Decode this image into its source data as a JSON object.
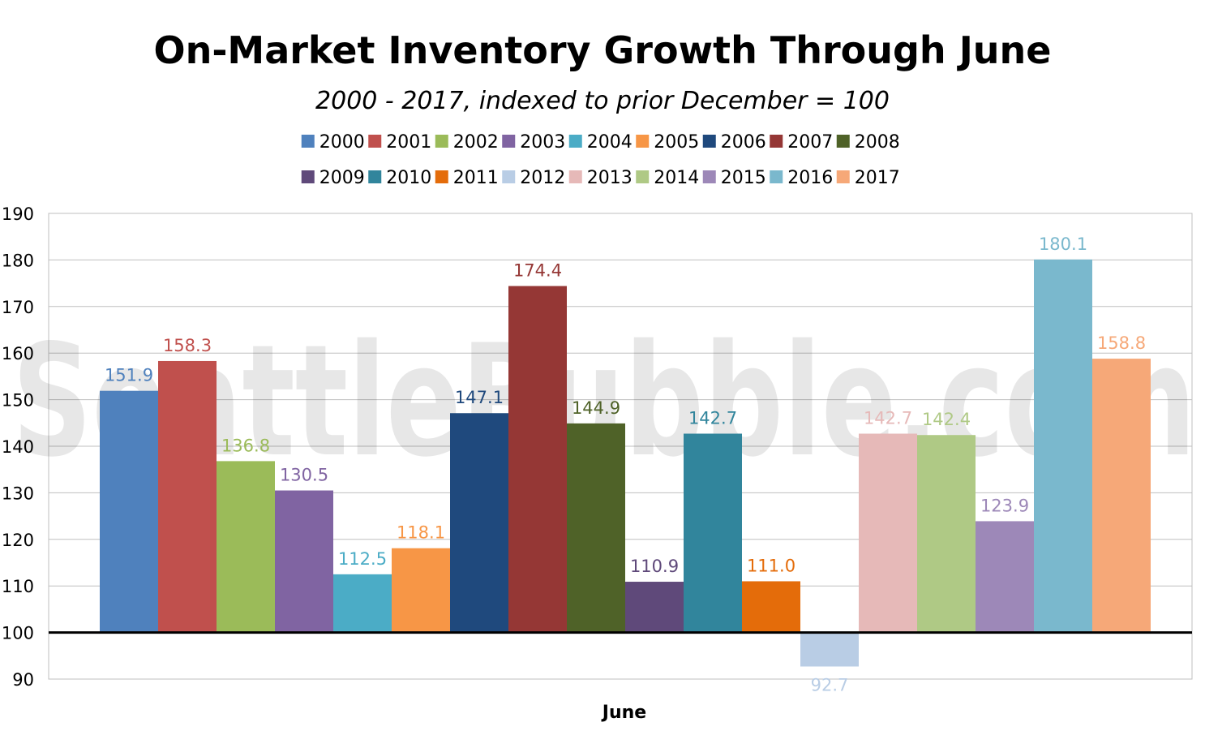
{
  "chart_data": {
    "type": "bar",
    "title": "On-Market Inventory Growth Through June",
    "subtitle": "2000 - 2017, indexed to prior December = 100",
    "xlabel": "June",
    "ylabel": "",
    "ylim": [
      90,
      190
    ],
    "yticks": [
      "190",
      "180",
      "170",
      "160",
      "150",
      "140",
      "130",
      "120",
      "110",
      "100",
      "90"
    ],
    "baseline": 100,
    "grid": true,
    "legend_position": "top",
    "watermark": "SeattleBubble.com",
    "series": [
      {
        "name": "2000",
        "value": 151.9,
        "label": "151.9",
        "color": "#4f81bd"
      },
      {
        "name": "2001",
        "value": 158.3,
        "label": "158.3",
        "color": "#c0504d"
      },
      {
        "name": "2002",
        "value": 136.8,
        "label": "136.8",
        "color": "#9bbb59"
      },
      {
        "name": "2003",
        "value": 130.5,
        "label": "130.5",
        "color": "#8064a2"
      },
      {
        "name": "2004",
        "value": 112.5,
        "label": "112.5",
        "color": "#4bacc6"
      },
      {
        "name": "2005",
        "value": 118.1,
        "label": "118.1",
        "color": "#f79646"
      },
      {
        "name": "2006",
        "value": 147.1,
        "label": "147.1",
        "color": "#1f497d"
      },
      {
        "name": "2007",
        "value": 174.4,
        "label": "174.4",
        "color": "#953735"
      },
      {
        "name": "2008",
        "value": 144.9,
        "label": "144.9",
        "color": "#4f6228"
      },
      {
        "name": "2009",
        "value": 110.9,
        "label": "110.9",
        "color": "#5f497a"
      },
      {
        "name": "2010",
        "value": 142.7,
        "label": "142.7",
        "color": "#31859c"
      },
      {
        "name": "2011",
        "value": 111.0,
        "label": "111.0",
        "color": "#e46c0a"
      },
      {
        "name": "2012",
        "value": 92.7,
        "label": "92.7",
        "color": "#b9cde5"
      },
      {
        "name": "2013",
        "value": 142.7,
        "label": "142.7",
        "color": "#e6b9b8"
      },
      {
        "name": "2014",
        "value": 142.4,
        "label": "142.4",
        "color": "#afc985"
      },
      {
        "name": "2015",
        "value": 123.9,
        "label": "123.9",
        "color": "#9d88b8"
      },
      {
        "name": "2016",
        "value": 180.1,
        "label": "180.1",
        "color": "#7ab8cd"
      },
      {
        "name": "2017",
        "value": 158.8,
        "label": "158.8",
        "color": "#f6a878"
      }
    ]
  }
}
